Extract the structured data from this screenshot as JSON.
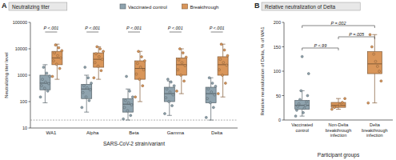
{
  "chart_data": [
    {
      "type": "box",
      "panel": "A",
      "title": "Neutralizing titer",
      "x_label": "SARS-CoV-2 strain/variant",
      "y_label": "Neutralizing titer level",
      "categories": [
        "WA1",
        "Alpha",
        "Beta",
        "Gamma",
        "Delta"
      ],
      "log": "y",
      "ylim": [
        10,
        100000
      ],
      "yticks": [
        10,
        100,
        1000,
        10000,
        100000
      ],
      "grid": false,
      "legend": "top",
      "detection_limit": 20,
      "p_values": [
        "P <.001",
        "P <.001",
        "P <.001",
        "P <.001",
        "P <.001"
      ],
      "series": [
        {
          "name": "Vaccinated control",
          "color": "#8fa3ae",
          "boxes": [
            {
              "min": 90,
              "q1": 280,
              "median": 500,
              "q3": 1000,
              "max": 2500
            },
            {
              "min": 40,
              "q1": 130,
              "median": 300,
              "q3": 450,
              "max": 1000
            },
            {
              "min": 20,
              "q1": 40,
              "median": 80,
              "q3": 130,
              "max": 300
            },
            {
              "min": 30,
              "q1": 100,
              "median": 200,
              "q3": 350,
              "max": 600
            },
            {
              "min": 20,
              "q1": 90,
              "median": 200,
              "q3": 350,
              "max": 800
            }
          ],
          "values": [
            [
              150,
              250,
              320,
              400,
              480,
              550,
              700,
              900,
              1200,
              2000
            ],
            [
              60,
              110,
              150,
              220,
              280,
              330,
              400,
              500,
              800,
              2000
            ],
            [
              22,
              30,
              45,
              60,
              75,
              90,
              110,
              150,
              250,
              900
            ],
            [
              35,
              70,
              100,
              140,
              180,
              230,
              300,
              400,
              550,
              700
            ],
            [
              25,
              60,
              90,
              130,
              180,
              230,
              300,
              380,
              500,
              800
            ]
          ]
        },
        {
          "name": "Breakthrough",
          "color": "#d9965a",
          "boxes": [
            {
              "min": 700,
              "q1": 2500,
              "median": 4500,
              "q3": 8000,
              "max": 15000
            },
            {
              "min": 700,
              "q1": 2000,
              "median": 4000,
              "q3": 7000,
              "max": 12000
            },
            {
              "min": 100,
              "q1": 700,
              "median": 1800,
              "q3": 3500,
              "max": 8000
            },
            {
              "min": 200,
              "q1": 1000,
              "median": 2500,
              "q3": 4500,
              "max": 10000
            },
            {
              "min": 150,
              "q1": 1000,
              "median": 2500,
              "q3": 5000,
              "max": 15000
            }
          ],
          "values": [
            [
              900,
              1800,
              2600,
              3500,
              4500,
              5500,
              7000,
              8500,
              11000,
              14000
            ],
            [
              800,
              1500,
              2200,
              3000,
              4000,
              5000,
              6500,
              8000,
              10000,
              12000
            ],
            [
              150,
              400,
              700,
              1100,
              1600,
              2000,
              2800,
              3500,
              5000,
              8000
            ],
            [
              250,
              600,
              1000,
              1600,
              2300,
              3000,
              3800,
              4800,
              7000,
              10000
            ],
            [
              200,
              500,
              1000,
              1600,
              2400,
              3000,
              4000,
              5500,
              9000,
              15000
            ]
          ]
        }
      ]
    },
    {
      "type": "box",
      "panel": "B",
      "title": "Relative neutralization of Delta",
      "x_label": "Participant groups",
      "y_label": "Relative neutralization of Delta, % of WA1",
      "categories": [
        "Vaccinated control",
        "Non-Delta breakthrough infection",
        "Delta breakthrough infection"
      ],
      "ylim": [
        0,
        200
      ],
      "yticks": [
        0,
        50,
        100,
        150,
        200
      ],
      "grid": false,
      "comparisons": [
        {
          "label": "P <.99",
          "groups": [
            0,
            1
          ]
        },
        {
          "label": "P =.005",
          "groups": [
            1,
            2
          ]
        },
        {
          "label": "P =.002",
          "groups": [
            0,
            2
          ]
        }
      ],
      "series": [
        {
          "colors": [
            "#8fa3ae",
            "#d9965a",
            "#d9965a"
          ],
          "boxes": [
            {
              "min": 8,
              "q1": 22,
              "median": 30,
              "q3": 40,
              "max": 60
            },
            {
              "min": 22,
              "q1": 26,
              "median": 30,
              "q3": 36,
              "max": 44
            },
            {
              "min": 35,
              "q1": 95,
              "median": 115,
              "q3": 140,
              "max": 175
            }
          ],
          "values": [
            [
              8,
              15,
              20,
              24,
              28,
              30,
              33,
              37,
              42,
              50,
              60,
              95,
              130
            ],
            [
              22,
              26,
              28,
              32,
              36,
              44
            ],
            [
              35,
              80,
              100,
              110,
              120,
              135,
              150,
              175
            ]
          ]
        }
      ]
    }
  ]
}
